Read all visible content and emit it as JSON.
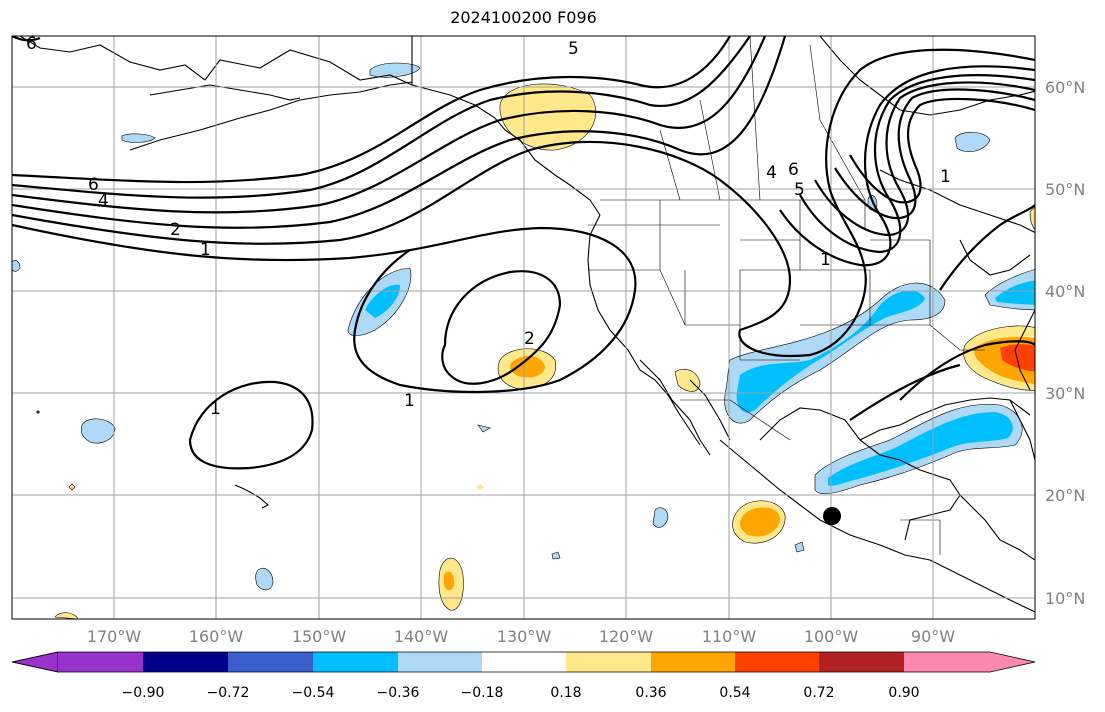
{
  "title": "2024100200 F096",
  "axes": {
    "lon_labels": [
      "170°W",
      "160°W",
      "150°W",
      "140°W",
      "130°W",
      "120°W",
      "110°W",
      "100°W",
      "90°W"
    ],
    "lat_labels": [
      "60°N",
      "50°N",
      "40°N",
      "30°N",
      "20°N",
      "10°N"
    ]
  },
  "contour_labels": [
    "6",
    "5",
    "6",
    "4",
    "2",
    "1",
    "4",
    "6",
    "5",
    "1",
    "2",
    "1",
    "1",
    "1"
  ],
  "colorbar": {
    "tick_labels": [
      "−0.90",
      "−0.72",
      "−0.54",
      "−0.36",
      "−0.18",
      "0.18",
      "0.36",
      "0.54",
      "0.72",
      "0.90"
    ],
    "colors": [
      "#9932cc",
      "#00008b",
      "#3a5fcd",
      "#00bfff",
      "#add8f6",
      "#ffffff",
      "#ffe88a",
      "#ffa500",
      "#ff4000",
      "#b22222",
      "#ff88b0"
    ]
  },
  "colors": {
    "grid": "#a0a0a0",
    "land": "#000000",
    "contour": "#000000"
  }
}
